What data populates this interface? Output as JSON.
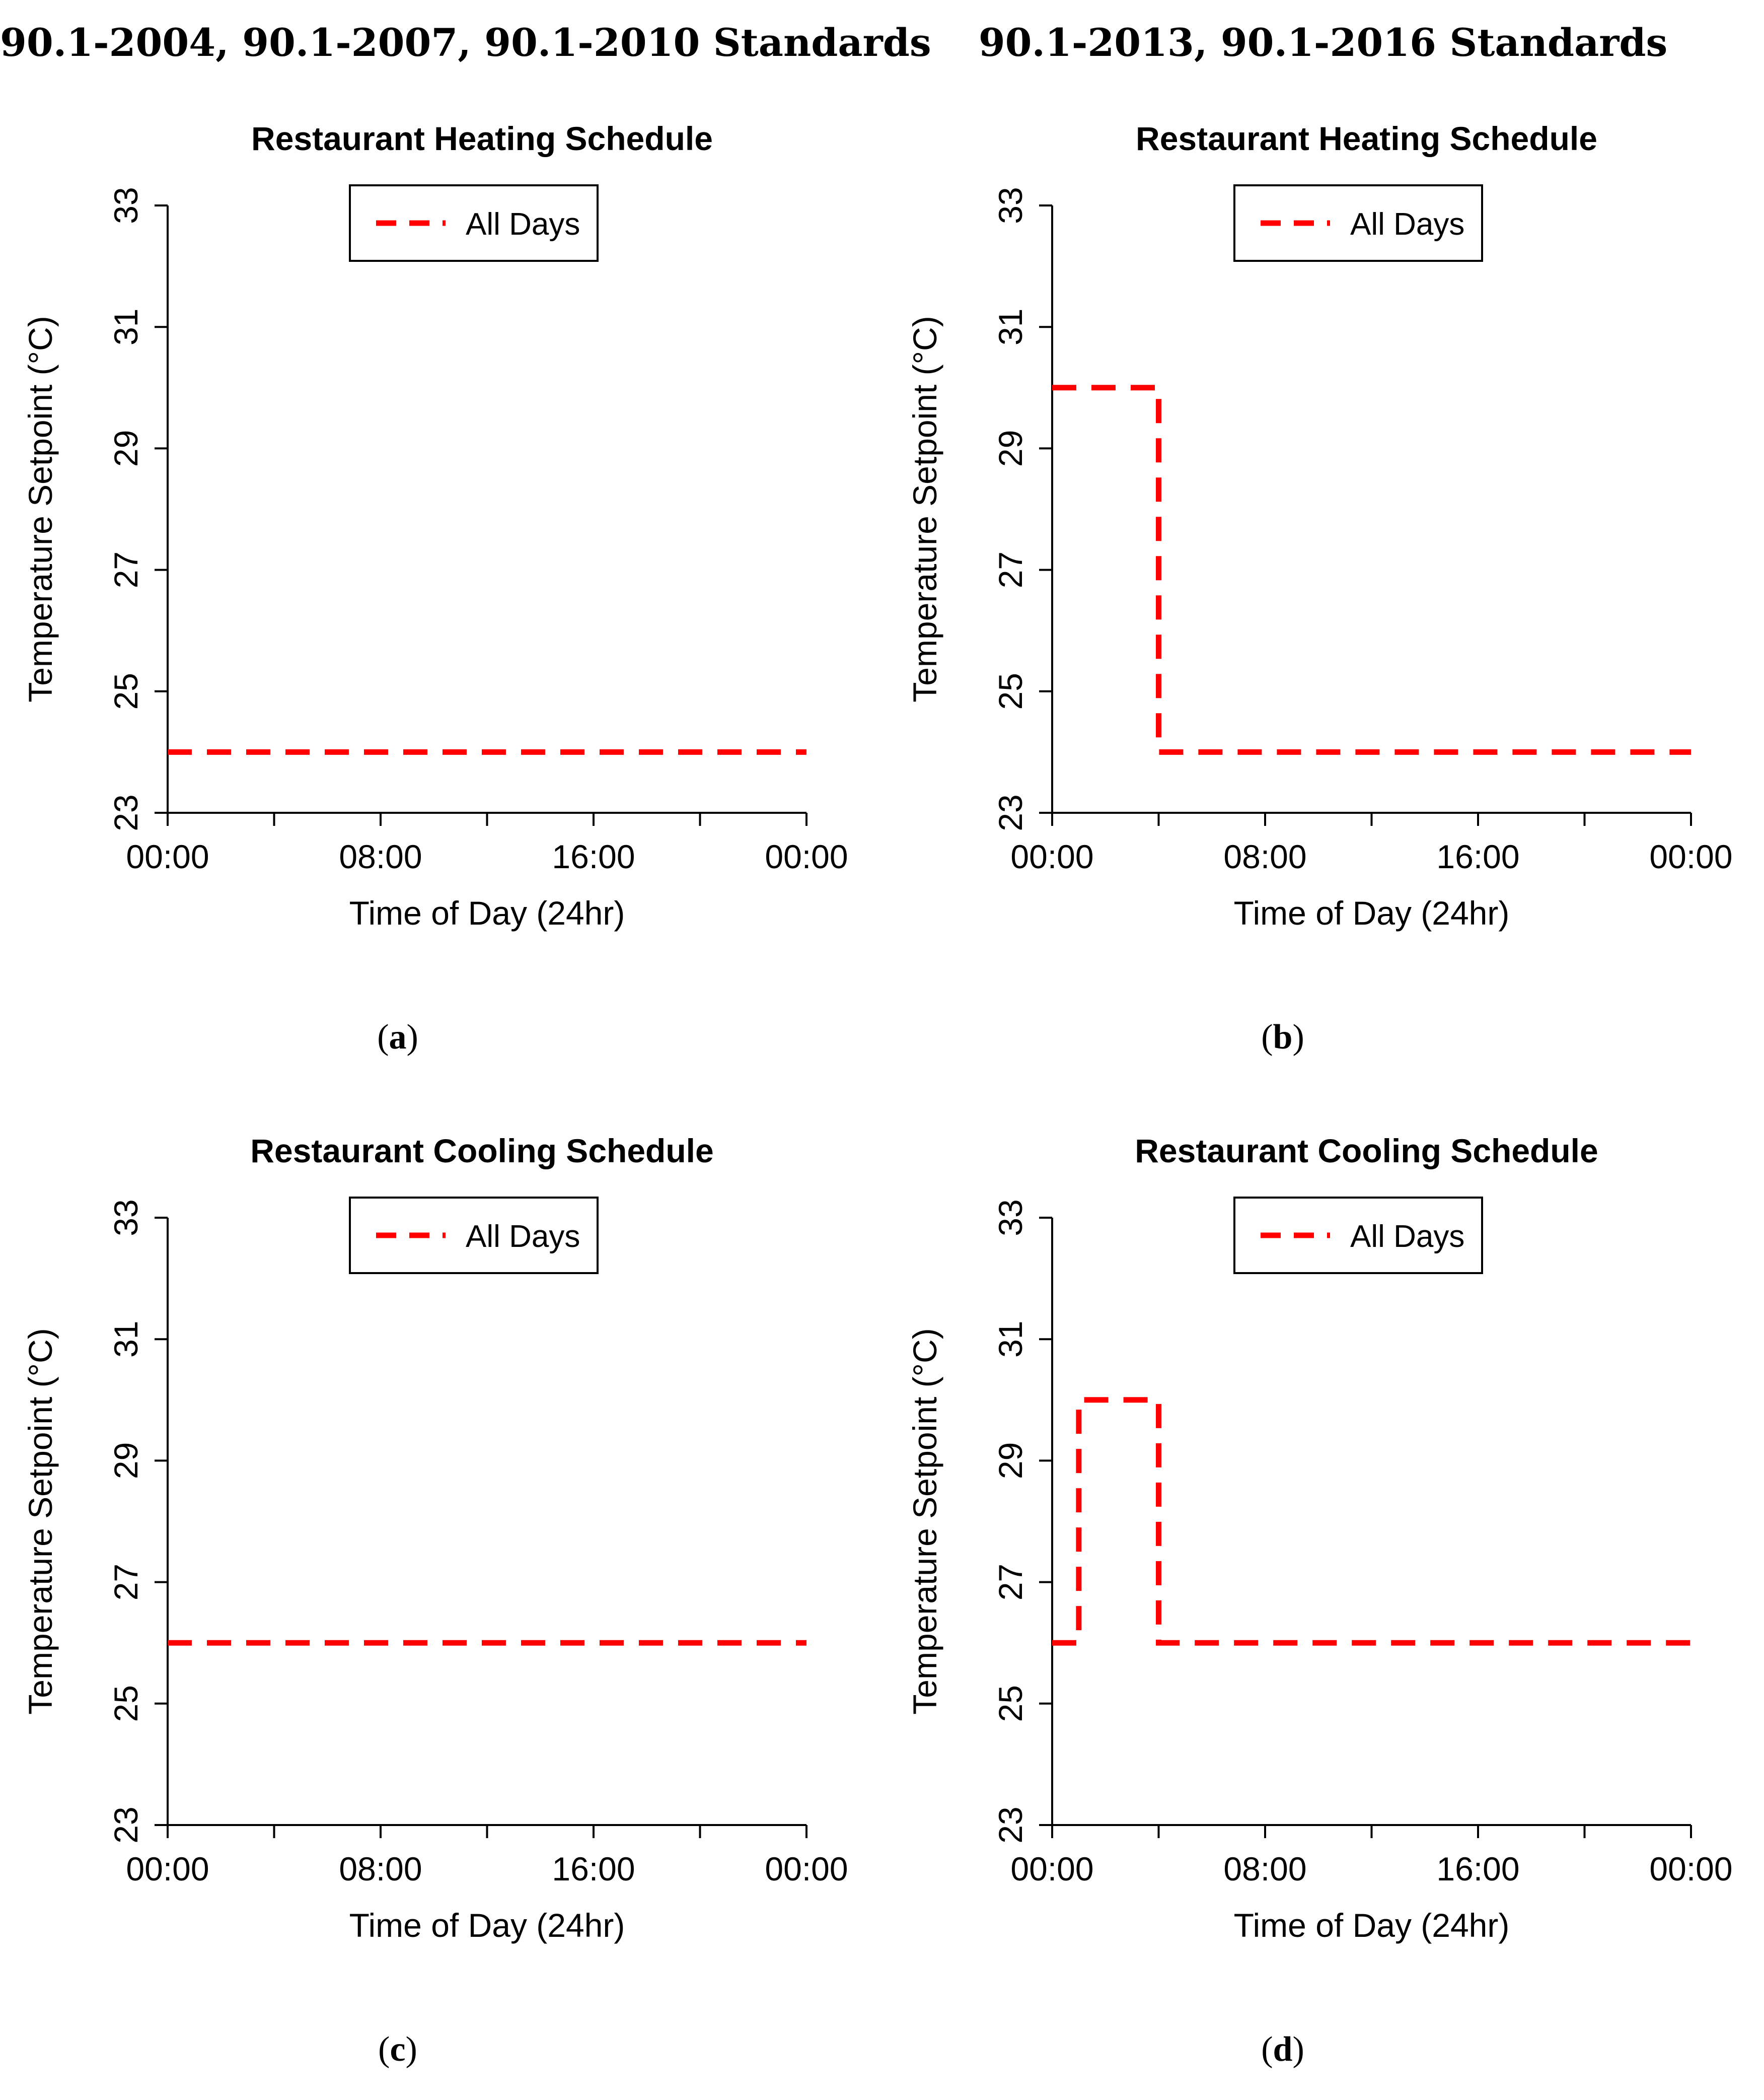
{
  "column_titles": [
    "90.1-2004, 90.1-2007, 90.1-2010 Standards",
    "90.1-2013, 90.1-2016 Standards"
  ],
  "panel_labels": [
    "a",
    "b",
    "c",
    "d"
  ],
  "colors": {
    "series": "#ff0000",
    "axis": "#000000"
  },
  "chart_data": [
    {
      "type": "line",
      "title": "Restaurant Heating Schedule",
      "xlabel": "Time of Day (24hr)",
      "ylabel": "Temperature Setpoint (°C)",
      "xlim": [
        0,
        24
      ],
      "ylim": [
        23,
        33
      ],
      "xticks": [
        0,
        8,
        16,
        24
      ],
      "xtick_labels": [
        "00:00",
        "08:00",
        "16:00",
        "00:00"
      ],
      "minor_xticks": [
        4,
        12,
        20
      ],
      "yticks": [
        23,
        25,
        27,
        29,
        31,
        33
      ],
      "ytick_labels": [
        "23",
        "25",
        "27",
        "29",
        "31",
        "33"
      ],
      "legend": {
        "position": "top",
        "entries": [
          "All Days"
        ]
      },
      "series": [
        {
          "name": "All Days",
          "style": "dashed",
          "x": [
            0,
            24
          ],
          "y": [
            24,
            24
          ]
        }
      ]
    },
    {
      "type": "line",
      "title": "Restaurant Heating Schedule",
      "xlabel": "Time of Day (24hr)",
      "ylabel": "Temperature Setpoint (°C)",
      "xlim": [
        0,
        24
      ],
      "ylim": [
        23,
        33
      ],
      "xticks": [
        0,
        8,
        16,
        24
      ],
      "xtick_labels": [
        "00:00",
        "08:00",
        "16:00",
        "00:00"
      ],
      "minor_xticks": [
        4,
        12,
        20
      ],
      "yticks": [
        23,
        25,
        27,
        29,
        31,
        33
      ],
      "ytick_labels": [
        "23",
        "25",
        "27",
        "29",
        "31",
        "33"
      ],
      "legend": {
        "position": "top",
        "entries": [
          "All Days"
        ]
      },
      "series": [
        {
          "name": "All Days",
          "style": "dashed",
          "x": [
            0,
            4,
            4,
            24
          ],
          "y": [
            30,
            30,
            24,
            24
          ]
        }
      ]
    },
    {
      "type": "line",
      "title": "Restaurant Cooling Schedule",
      "xlabel": "Time of Day (24hr)",
      "ylabel": "Temperature Setpoint (°C)",
      "xlim": [
        0,
        24
      ],
      "ylim": [
        23,
        33
      ],
      "xticks": [
        0,
        8,
        16,
        24
      ],
      "xtick_labels": [
        "00:00",
        "08:00",
        "16:00",
        "00:00"
      ],
      "minor_xticks": [
        4,
        12,
        20
      ],
      "yticks": [
        23,
        25,
        27,
        29,
        31,
        33
      ],
      "ytick_labels": [
        "23",
        "25",
        "27",
        "29",
        "31",
        "33"
      ],
      "legend": {
        "position": "top",
        "entries": [
          "All Days"
        ]
      },
      "series": [
        {
          "name": "All Days",
          "style": "dashed",
          "x": [
            0,
            24
          ],
          "y": [
            26,
            26
          ]
        }
      ]
    },
    {
      "type": "line",
      "title": "Restaurant Cooling Schedule",
      "xlabel": "Time of Day (24hr)",
      "ylabel": "Temperature Setpoint (°C)",
      "xlim": [
        0,
        24
      ],
      "ylim": [
        23,
        33
      ],
      "xticks": [
        0,
        8,
        16,
        24
      ],
      "xtick_labels": [
        "00:00",
        "08:00",
        "16:00",
        "00:00"
      ],
      "minor_xticks": [
        4,
        12,
        20
      ],
      "yticks": [
        23,
        25,
        27,
        29,
        31,
        33
      ],
      "ytick_labels": [
        "23",
        "25",
        "27",
        "29",
        "31",
        "33"
      ],
      "legend": {
        "position": "top",
        "entries": [
          "All Days"
        ]
      },
      "series": [
        {
          "name": "All Days",
          "style": "dashed",
          "x": [
            0,
            1,
            1,
            4,
            4,
            24
          ],
          "y": [
            26,
            26,
            30,
            30,
            26,
            26
          ]
        }
      ]
    }
  ]
}
